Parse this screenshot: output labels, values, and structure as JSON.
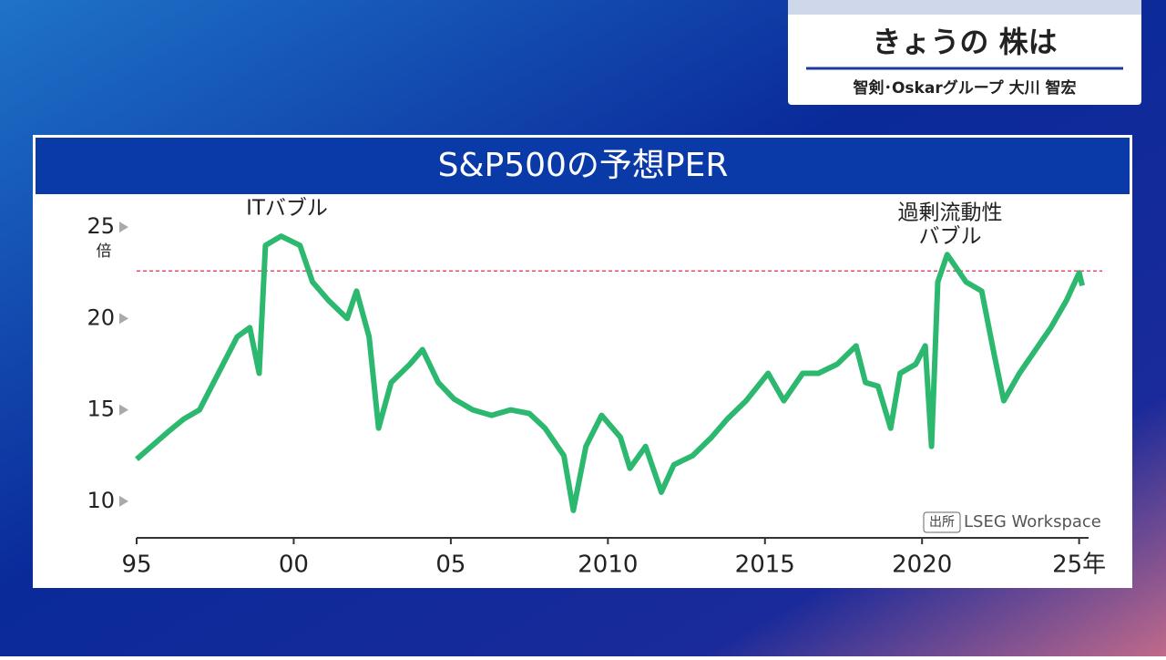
{
  "header": {
    "title": "きょうの 株は",
    "presenter": "智剣･Oskarグループ 大川 智宏"
  },
  "chart_data": {
    "type": "line",
    "title": "S&P500の予想PER",
    "y_unit": "倍",
    "annotations": [
      [
        "ITバブル"
      ],
      [
        "過剰流動性",
        "バブル"
      ]
    ],
    "source_label": "出所",
    "source": "LSEG Workspace",
    "reference_line": 22.6,
    "reference_color": "#e0506a",
    "color": "#2db870",
    "x": [
      1995.0,
      1996.0,
      1996.5,
      1997.0,
      1997.6,
      1998.2,
      1998.6,
      1998.9,
      1999.1,
      1999.6,
      2000.2,
      2000.6,
      2001.1,
      2001.7,
      2002.0,
      2002.4,
      2002.7,
      2003.1,
      2003.7,
      2004.1,
      2004.6,
      2005.1,
      2005.7,
      2006.3,
      2006.9,
      2007.5,
      2008.0,
      2008.6,
      2008.9,
      2009.3,
      2009.8,
      2010.4,
      2010.7,
      2011.2,
      2011.7,
      2012.1,
      2012.7,
      2013.3,
      2013.8,
      2014.4,
      2015.1,
      2015.6,
      2016.2,
      2016.7,
      2017.3,
      2017.9,
      2018.2,
      2018.6,
      2019.0,
      2019.3,
      2019.8,
      2020.1,
      2020.3,
      2020.5,
      2020.8,
      2021.4,
      2021.9,
      2022.3,
      2022.6,
      2023.1,
      2023.7,
      2024.1,
      2024.6,
      2025.0,
      2025.1
    ],
    "values": [
      12.3,
      13.8,
      14.5,
      15.0,
      17.0,
      19.0,
      19.5,
      17.0,
      24.0,
      24.5,
      24.0,
      22.0,
      21.0,
      20.0,
      21.5,
      19.0,
      14.0,
      16.5,
      17.5,
      18.3,
      16.5,
      15.6,
      15.0,
      14.7,
      15.0,
      14.8,
      14.0,
      12.5,
      9.5,
      13.0,
      14.7,
      13.5,
      11.8,
      13.0,
      10.5,
      12.0,
      12.5,
      13.5,
      14.5,
      15.5,
      17.0,
      15.5,
      17.0,
      17.0,
      17.5,
      18.5,
      16.5,
      16.3,
      14.0,
      17.0,
      17.5,
      18.5,
      13.0,
      22.0,
      23.5,
      22.0,
      21.5,
      18.0,
      15.5,
      17.0,
      18.5,
      19.5,
      21.0,
      22.5,
      21.8
    ],
    "xlim": [
      1995,
      2025.3
    ],
    "xticks": [
      {
        "value": 1995,
        "label": "95"
      },
      {
        "value": 2000,
        "label": "00"
      },
      {
        "value": 2005,
        "label": "05"
      },
      2010,
      2015,
      2020,
      {
        "value": 2025,
        "label": "25年"
      }
    ],
    "ylim": [
      8,
      27
    ],
    "yticks": [
      10,
      15,
      20,
      25
    ]
  }
}
